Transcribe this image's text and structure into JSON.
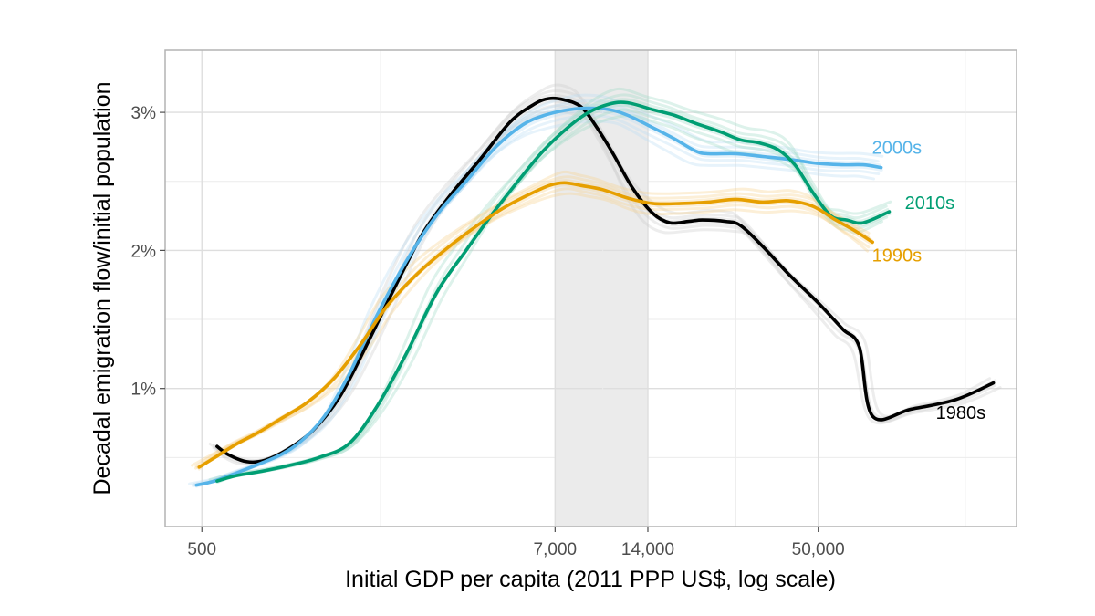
{
  "chart_data": {
    "type": "line",
    "xlabel": "Initial GDP per capita (2011 PPP US$, log scale)",
    "ylabel": "Decadal emigration flow/initial population",
    "x_scale": "log",
    "xlim": [
      380,
      220000
    ],
    "ylim": [
      0.0,
      3.45
    ],
    "x_ticks": [
      {
        "value": 500,
        "label": "500"
      },
      {
        "value": 7000,
        "label": "7,000"
      },
      {
        "value": 14000,
        "label": "14,000"
      },
      {
        "value": 50000,
        "label": "50,000"
      }
    ],
    "x_minor_gridlines": [
      1900,
      10000,
      27000,
      150000
    ],
    "y_ticks": [
      {
        "value": 1,
        "label": "1%"
      },
      {
        "value": 2,
        "label": "2%"
      },
      {
        "value": 3,
        "label": "3%"
      }
    ],
    "y_minor_gridlines": [
      0.5,
      1.5,
      2.5
    ],
    "grid": true,
    "shaded_band": {
      "from": 7000,
      "to": 14000,
      "color": "#e6e6e6"
    },
    "series": [
      {
        "name": "1980s",
        "color": "#000000",
        "points": [
          [
            560,
            0.58
          ],
          [
            610,
            0.52
          ],
          [
            700,
            0.47
          ],
          [
            800,
            0.48
          ],
          [
            950,
            0.56
          ],
          [
            1150,
            0.7
          ],
          [
            1400,
            0.94
          ],
          [
            1700,
            1.3
          ],
          [
            2100,
            1.72
          ],
          [
            2600,
            2.12
          ],
          [
            3200,
            2.4
          ],
          [
            4000,
            2.66
          ],
          [
            5000,
            2.93
          ],
          [
            6000,
            3.06
          ],
          [
            6700,
            3.1
          ],
          [
            7500,
            3.09
          ],
          [
            8500,
            3.04
          ],
          [
            9500,
            2.9
          ],
          [
            10800,
            2.7
          ],
          [
            12500,
            2.45
          ],
          [
            14500,
            2.27
          ],
          [
            16500,
            2.2
          ],
          [
            19000,
            2.21
          ],
          [
            21000,
            2.22
          ],
          [
            25000,
            2.21
          ],
          [
            28000,
            2.18
          ],
          [
            33000,
            2.03
          ],
          [
            40000,
            1.83
          ],
          [
            50000,
            1.62
          ],
          [
            60000,
            1.43
          ],
          [
            68000,
            1.3
          ],
          [
            75000,
            0.8
          ],
          [
            100000,
            0.85
          ],
          [
            140000,
            0.92
          ],
          [
            185000,
            1.04
          ]
        ]
      },
      {
        "name": "2000s",
        "color": "#56b4e9",
        "points": [
          [
            480,
            0.3
          ],
          [
            550,
            0.33
          ],
          [
            650,
            0.39
          ],
          [
            760,
            0.45
          ],
          [
            900,
            0.52
          ],
          [
            1050,
            0.62
          ],
          [
            1250,
            0.8
          ],
          [
            1500,
            1.1
          ],
          [
            1850,
            1.53
          ],
          [
            2300,
            1.92
          ],
          [
            2900,
            2.26
          ],
          [
            3600,
            2.5
          ],
          [
            4500,
            2.75
          ],
          [
            5500,
            2.91
          ],
          [
            6500,
            2.98
          ],
          [
            7800,
            3.02
          ],
          [
            9000,
            3.03
          ],
          [
            10500,
            3.02
          ],
          [
            12000,
            2.98
          ],
          [
            14500,
            2.89
          ],
          [
            17000,
            2.81
          ],
          [
            20000,
            2.72
          ],
          [
            22000,
            2.7
          ],
          [
            27000,
            2.7
          ],
          [
            33000,
            2.68
          ],
          [
            40000,
            2.66
          ],
          [
            50000,
            2.63
          ],
          [
            60000,
            2.62
          ],
          [
            70000,
            2.62
          ],
          [
            80000,
            2.6
          ]
        ]
      },
      {
        "name": "2010s",
        "color": "#009e73",
        "points": [
          [
            560,
            0.33
          ],
          [
            650,
            0.37
          ],
          [
            780,
            0.4
          ],
          [
            950,
            0.44
          ],
          [
            1200,
            0.5
          ],
          [
            1500,
            0.6
          ],
          [
            1850,
            0.87
          ],
          [
            2300,
            1.25
          ],
          [
            2900,
            1.7
          ],
          [
            3600,
            2.0
          ],
          [
            4400,
            2.27
          ],
          [
            5300,
            2.5
          ],
          [
            6400,
            2.72
          ],
          [
            7700,
            2.89
          ],
          [
            9000,
            3.0
          ],
          [
            10500,
            3.06
          ],
          [
            12000,
            3.07
          ],
          [
            14500,
            3.02
          ],
          [
            17000,
            2.98
          ],
          [
            20000,
            2.92
          ],
          [
            24000,
            2.86
          ],
          [
            28000,
            2.8
          ],
          [
            32000,
            2.78
          ],
          [
            37000,
            2.73
          ],
          [
            42000,
            2.62
          ],
          [
            48000,
            2.42
          ],
          [
            55000,
            2.25
          ],
          [
            62000,
            2.22
          ],
          [
            70000,
            2.2
          ],
          [
            85000,
            2.28
          ]
        ]
      },
      {
        "name": "1990s",
        "color": "#e69f00",
        "points": [
          [
            490,
            0.43
          ],
          [
            560,
            0.51
          ],
          [
            650,
            0.6
          ],
          [
            760,
            0.68
          ],
          [
            900,
            0.78
          ],
          [
            1100,
            0.9
          ],
          [
            1350,
            1.08
          ],
          [
            1650,
            1.33
          ],
          [
            2000,
            1.6
          ],
          [
            2500,
            1.83
          ],
          [
            3100,
            2.01
          ],
          [
            3800,
            2.16
          ],
          [
            4700,
            2.3
          ],
          [
            5700,
            2.4
          ],
          [
            6700,
            2.47
          ],
          [
            7500,
            2.49
          ],
          [
            8500,
            2.47
          ],
          [
            10000,
            2.44
          ],
          [
            12000,
            2.38
          ],
          [
            14500,
            2.34
          ],
          [
            18000,
            2.34
          ],
          [
            22000,
            2.35
          ],
          [
            27000,
            2.37
          ],
          [
            33000,
            2.35
          ],
          [
            40000,
            2.36
          ],
          [
            48000,
            2.32
          ],
          [
            57000,
            2.22
          ],
          [
            66000,
            2.14
          ],
          [
            75000,
            2.06
          ]
        ]
      }
    ],
    "series_labels": [
      {
        "name": "2000s",
        "text": "2000s",
        "at": [
          90000,
          2.7
        ]
      },
      {
        "name": "2010s",
        "text": "2010s",
        "at": [
          115000,
          2.3
        ]
      },
      {
        "name": "1990s",
        "text": "1990s",
        "at": [
          90000,
          1.92
        ]
      },
      {
        "name": "1980s",
        "text": "1980s",
        "at": [
          145000,
          0.78
        ]
      }
    ],
    "background_bands": [
      {
        "color": "#cccccc",
        "of": "1980s"
      },
      {
        "color": "#b9dcf3",
        "of": "2000s"
      },
      {
        "color": "#9fd9c5",
        "of": "2010s"
      },
      {
        "color": "#f5d28c",
        "of": "1990s"
      }
    ]
  }
}
